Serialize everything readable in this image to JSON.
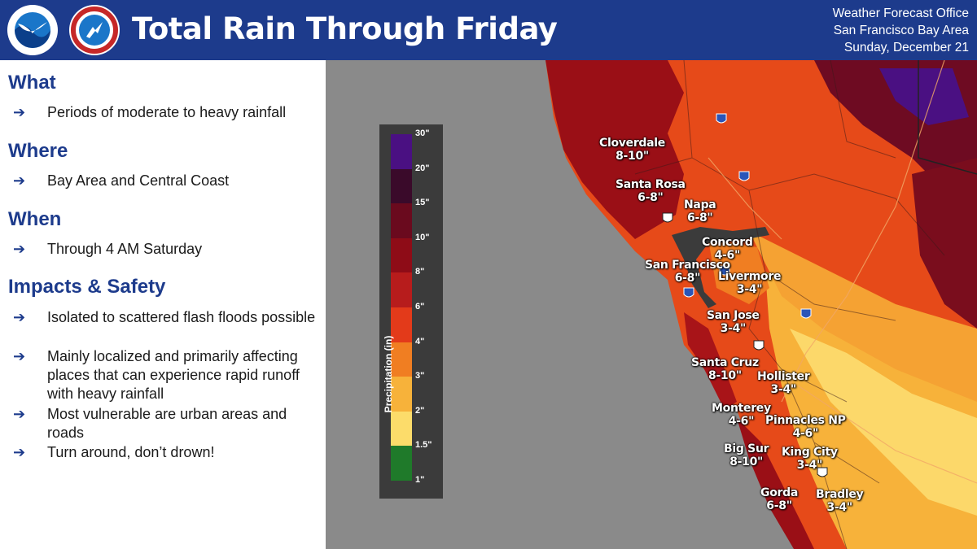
{
  "header": {
    "title": "Total Rain Through Friday",
    "office_lines": [
      "Weather Forecast Office",
      "San Francisco Bay Area",
      "Sunday, December 21"
    ],
    "background": "#1d3b8c"
  },
  "logos": [
    {
      "name": "noaa-logo-icon",
      "text": "NOAA"
    },
    {
      "name": "nws-logo-icon",
      "text": "NATIONAL WEATHER SERVICE"
    }
  ],
  "sections": [
    {
      "heading": "What",
      "items": [
        "Periods of moderate to heavy rainfall"
      ]
    },
    {
      "heading": "Where",
      "items": [
        "Bay Area and Central Coast"
      ]
    },
    {
      "heading": "When",
      "items": [
        "Through 4 AM Saturday"
      ]
    },
    {
      "heading": "Impacts & Safety",
      "items": [
        "Isolated to scattered flash floods possible",
        "Mainly localized and primarily affecting places that can experience rapid runoff with heavy rainfall",
        "Most vulnerable are urban areas and roads",
        "Turn around, don’t drown!"
      ]
    }
  ],
  "bullet_glyph": "➔",
  "legend": {
    "label": "Precipitation (in)",
    "ticks": [
      "30\"",
      "20\"",
      "15\"",
      "10\"",
      "8\"",
      "6\"",
      "4\"",
      "3\"",
      "2\"",
      "1.5\"",
      "1\""
    ],
    "colors": [
      "#4a1082",
      "#3a0a2a",
      "#6a0a1e",
      "#8e0c17",
      "#b71c1c",
      "#e33a1a",
      "#f07e22",
      "#f7b23a",
      "#fcdc6a",
      "#fbf4a2",
      "#1f7a2a"
    ]
  },
  "cities": [
    {
      "name": "Cloverdale",
      "range": "8-10\""
    },
    {
      "name": "Santa Rosa",
      "range": "6-8\""
    },
    {
      "name": "Napa",
      "range": "6-8\""
    },
    {
      "name": "Concord",
      "range": "4-6\""
    },
    {
      "name": "San Francisco",
      "range": "6-8\""
    },
    {
      "name": "Livermore",
      "range": "3-4\""
    },
    {
      "name": "San Jose",
      "range": "3-4\""
    },
    {
      "name": "Santa Cruz",
      "range": "8-10\""
    },
    {
      "name": "Hollister",
      "range": "3-4\""
    },
    {
      "name": "Monterey",
      "range": "4-6\""
    },
    {
      "name": "Pinnacles NP",
      "range": "4-6\""
    },
    {
      "name": "Big Sur",
      "range": "8-10\""
    },
    {
      "name": "King City",
      "range": "3-4\""
    },
    {
      "name": "Gorda",
      "range": "6-8\""
    },
    {
      "name": "Bradley",
      "range": "3-4\""
    }
  ],
  "highway_shields": [
    "5",
    "80",
    "101",
    "280",
    "680",
    "5",
    "101",
    "101"
  ]
}
